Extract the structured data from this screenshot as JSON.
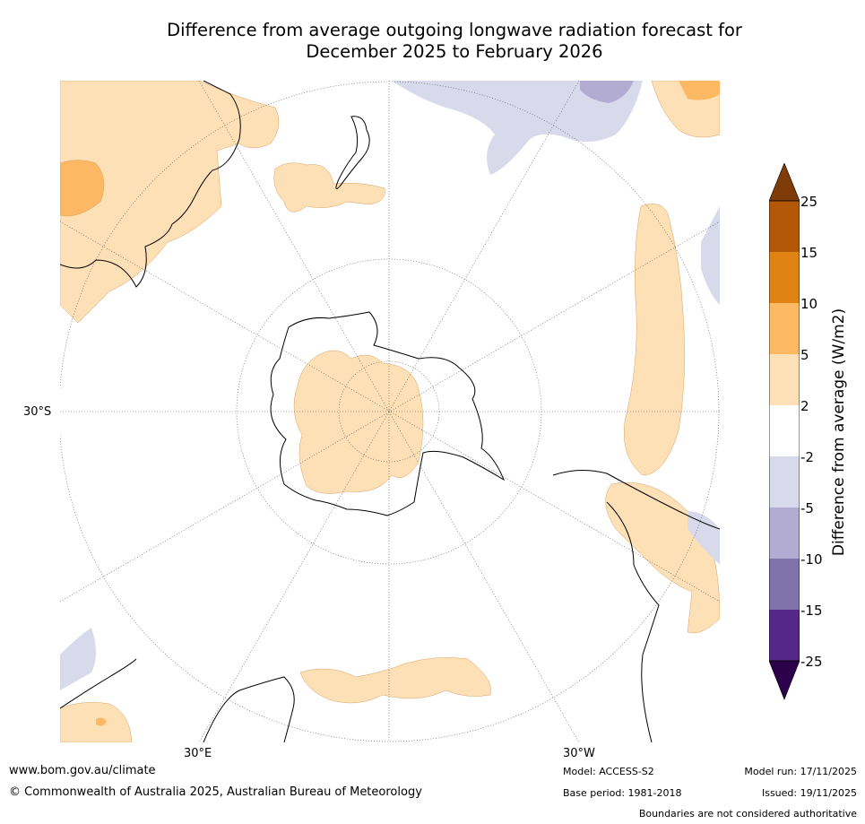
{
  "title_line1": "Difference from average outgoing longwave radiation forecast for",
  "title_line2": "December 2025 to February 2026",
  "axis_labels": {
    "lat": "30°S",
    "lon_east": "30°E",
    "lon_west": "30°W"
  },
  "colorbar": {
    "label": "Difference from average (W/m2)",
    "ticks": [
      "25",
      "15",
      "10",
      "5",
      "2",
      "-2",
      "-5",
      "-10",
      "-15",
      "-25"
    ],
    "colors": {
      "above_25": "#7f3b08",
      "15_25": "#b35806",
      "10_15": "#e08214",
      "5_10": "#fdb863",
      "2_5": "#fee0b6",
      "neutral": "#ffffff",
      "m5_m2": "#d8daeb",
      "m10_m5": "#b2abd2",
      "m15_m10": "#8073ac",
      "m25_m15": "#542788",
      "below_m25": "#2d004b"
    }
  },
  "footer": {
    "website": "www.bom.gov.au/climate",
    "copyright": "© Commonwealth of Australia 2025, Australian Bureau of Meteorology",
    "model": "Model: ACCESS-S2",
    "base_period": "Base period: 1981-2018",
    "model_run": "Model run: 17/11/2025",
    "issued": "Issued: 19/11/2025",
    "disclaimer": "Boundaries are not considered authoritative"
  }
}
